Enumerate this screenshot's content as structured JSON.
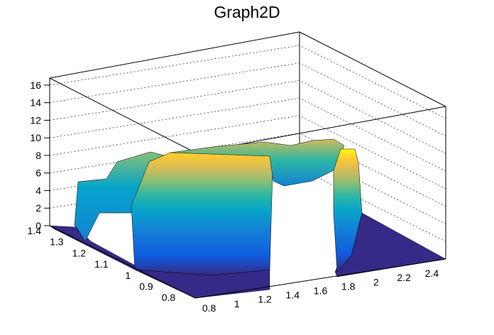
{
  "chart_data": {
    "type": "surface",
    "title": "Graph2D",
    "x_axis": {
      "ticks": [
        "0.8",
        "1",
        "1.2",
        "1.4",
        "1.6",
        "1.8",
        "2",
        "2.2",
        "2.4"
      ],
      "range": [
        0.7,
        2.5
      ]
    },
    "y_axis": {
      "ticks": [
        "0.8",
        "0.9",
        "1",
        "1.1",
        "1.2",
        "1.3",
        "1.4"
      ],
      "range": [
        0.75,
        1.4
      ]
    },
    "z_axis": {
      "ticks": [
        "0",
        "2",
        "4",
        "6",
        "8",
        "10",
        "12",
        "14",
        "16"
      ],
      "range": [
        0,
        16.8
      ]
    },
    "grid": true,
    "palette": [
      "#352a87",
      "#0f5cdd",
      "#1481d6",
      "#06a4ca",
      "#2eb7a4",
      "#87bf77",
      "#d1bb59",
      "#fec832",
      "#f9fb0e"
    ],
    "surface_description_points": [
      {
        "x": 0.8,
        "y": 1.3,
        "z": 5.5
      },
      {
        "x": 1.0,
        "y": 1.3,
        "z": 7.8
      },
      {
        "x": 1.2,
        "y": 1.0,
        "z": 9.0
      },
      {
        "x": 1.6,
        "y": 0.9,
        "z": 9.2
      },
      {
        "x": 2.0,
        "y": 1.2,
        "z": 9.5
      },
      {
        "x": 2.3,
        "y": 1.3,
        "z": 8.0
      },
      {
        "x": 2.4,
        "y": 1.4,
        "z": 0.0
      }
    ]
  }
}
